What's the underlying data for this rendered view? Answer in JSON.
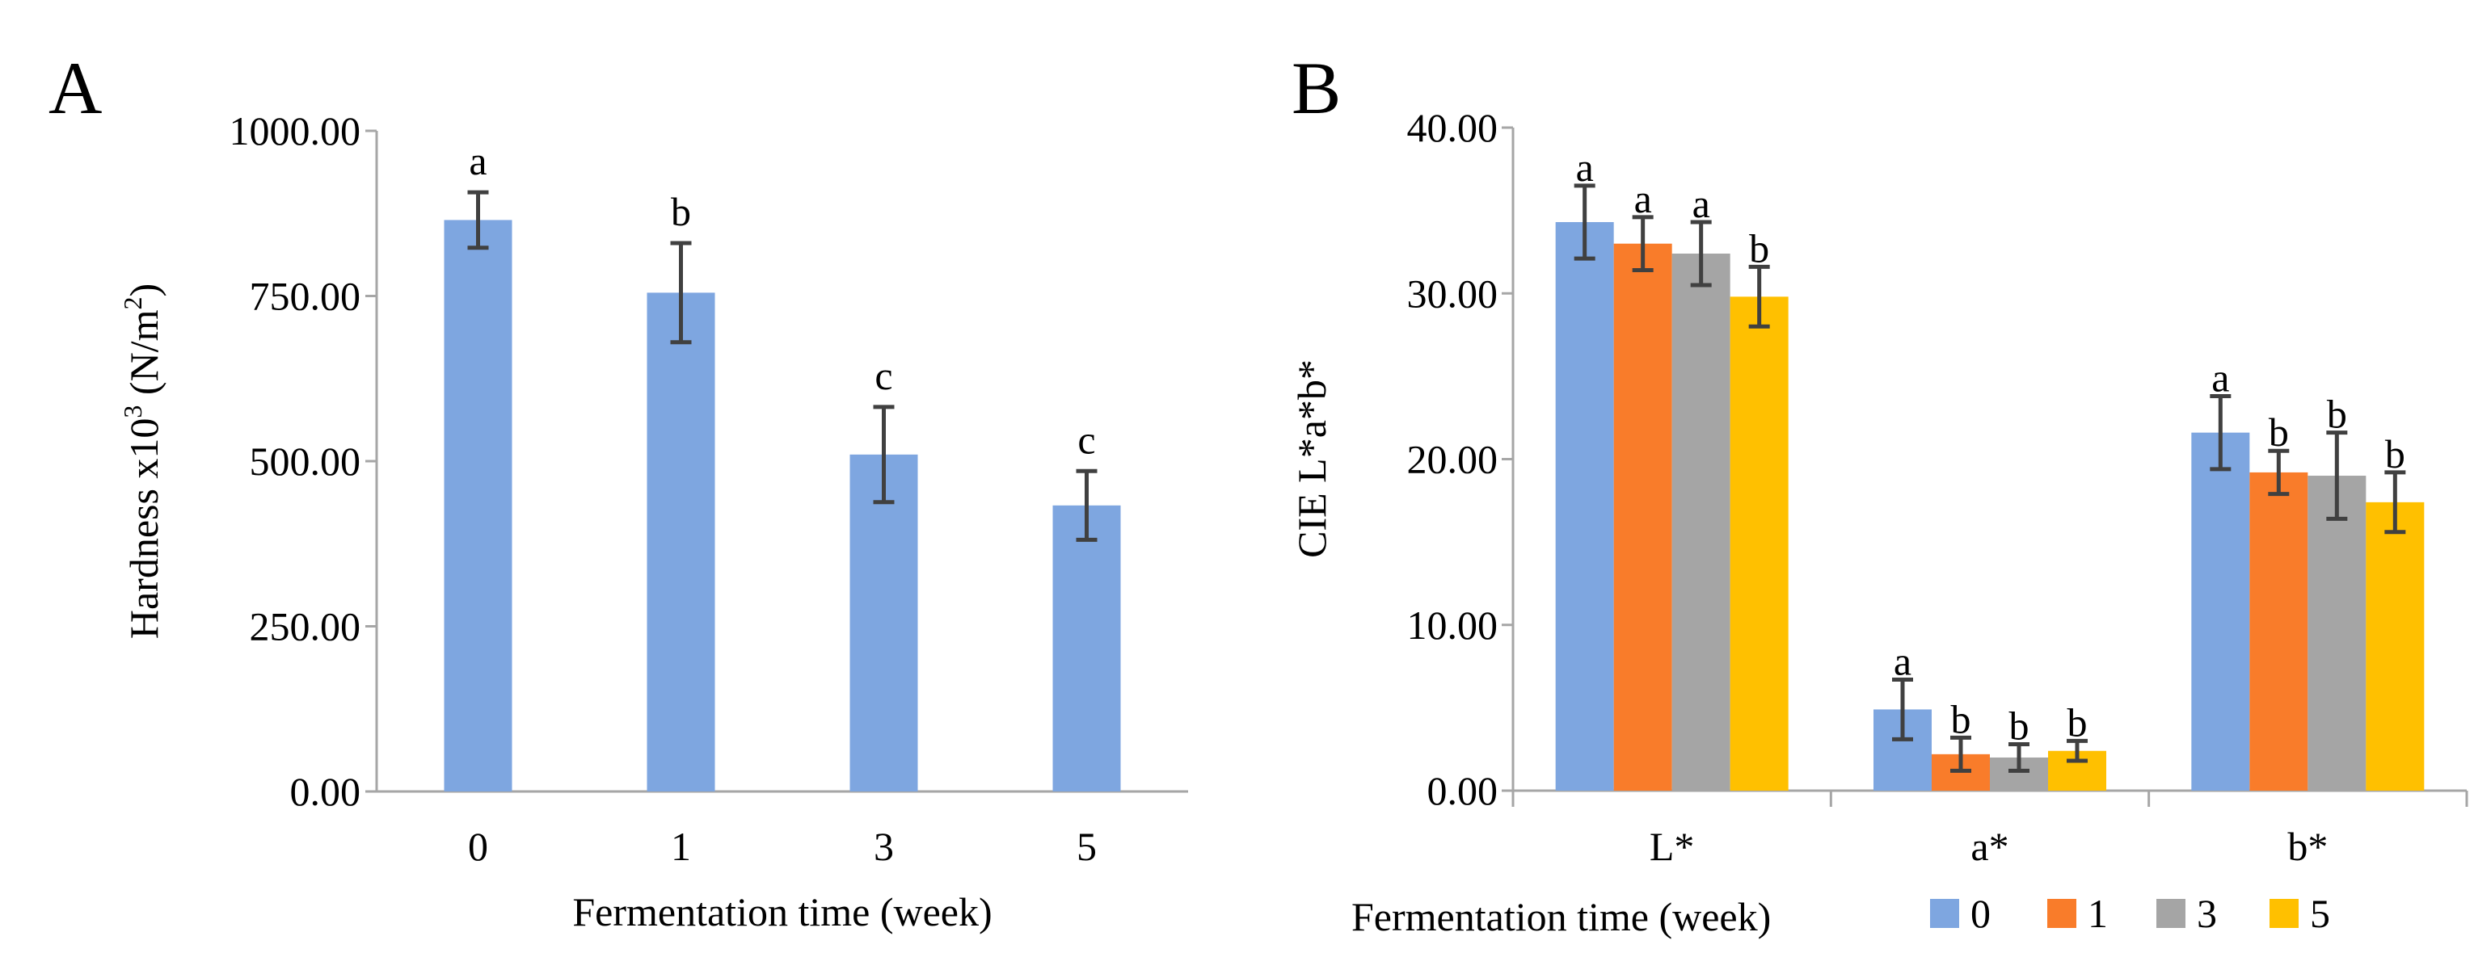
{
  "chart_data": [
    {
      "panel": "A",
      "type": "bar",
      "title": "",
      "xlabel": "Fermentation time (week)",
      "ylabel_main": "Hardness  x10",
      "ylabel_sup": "3",
      "ylabel_unit": " (N/m",
      "ylabel_unit_sup": "2",
      "ylabel_close": ")",
      "ylim": [
        0,
        1000
      ],
      "yticks": [
        "0.00",
        "250.00",
        "500.00",
        "750.00",
        "1000.00"
      ],
      "yticks_values": [
        0,
        250,
        500,
        750,
        1000
      ],
      "categories": [
        "0",
        "1",
        "3",
        "5"
      ],
      "values": [
        865,
        755,
        510,
        433
      ],
      "errors": [
        42,
        75,
        72,
        52
      ],
      "significance": [
        "a",
        "b",
        "c",
        "c"
      ],
      "color": "#7ea6e0"
    },
    {
      "panel": "B",
      "type": "bar",
      "title": "",
      "xlabel": "Fermentation time (week)",
      "ylabel": "CIE L*a*b*",
      "ylim": [
        0,
        40
      ],
      "yticks": [
        "0.00",
        "10.00",
        "20.00",
        "30.00",
        "40.00"
      ],
      "yticks_values": [
        0,
        10,
        20,
        30,
        40
      ],
      "categories": [
        "L*",
        "a*",
        "b*"
      ],
      "series": [
        {
          "name": "0",
          "color": "#7ea6e0",
          "values": [
            34.3,
            4.9,
            21.6
          ],
          "errors": [
            2.2,
            1.8,
            2.2
          ],
          "significance": [
            "a",
            "a",
            "a"
          ]
        },
        {
          "name": "1",
          "color": "#f97c2a",
          "values": [
            33.0,
            2.2,
            19.2
          ],
          "errors": [
            1.6,
            1.0,
            1.3
          ],
          "significance": [
            "a",
            "b",
            "b"
          ]
        },
        {
          "name": "3",
          "color": "#a5a5a5",
          "values": [
            32.4,
            2.0,
            19.0
          ],
          "errors": [
            1.9,
            0.8,
            2.6
          ],
          "significance": [
            "a",
            "b",
            "b"
          ]
        },
        {
          "name": "5",
          "color": "#ffc000",
          "values": [
            29.8,
            2.4,
            17.4
          ],
          "errors": [
            1.8,
            0.6,
            1.8
          ],
          "significance": [
            "b",
            "b",
            "b"
          ]
        }
      ],
      "legend_position": "bottom-right"
    }
  ]
}
